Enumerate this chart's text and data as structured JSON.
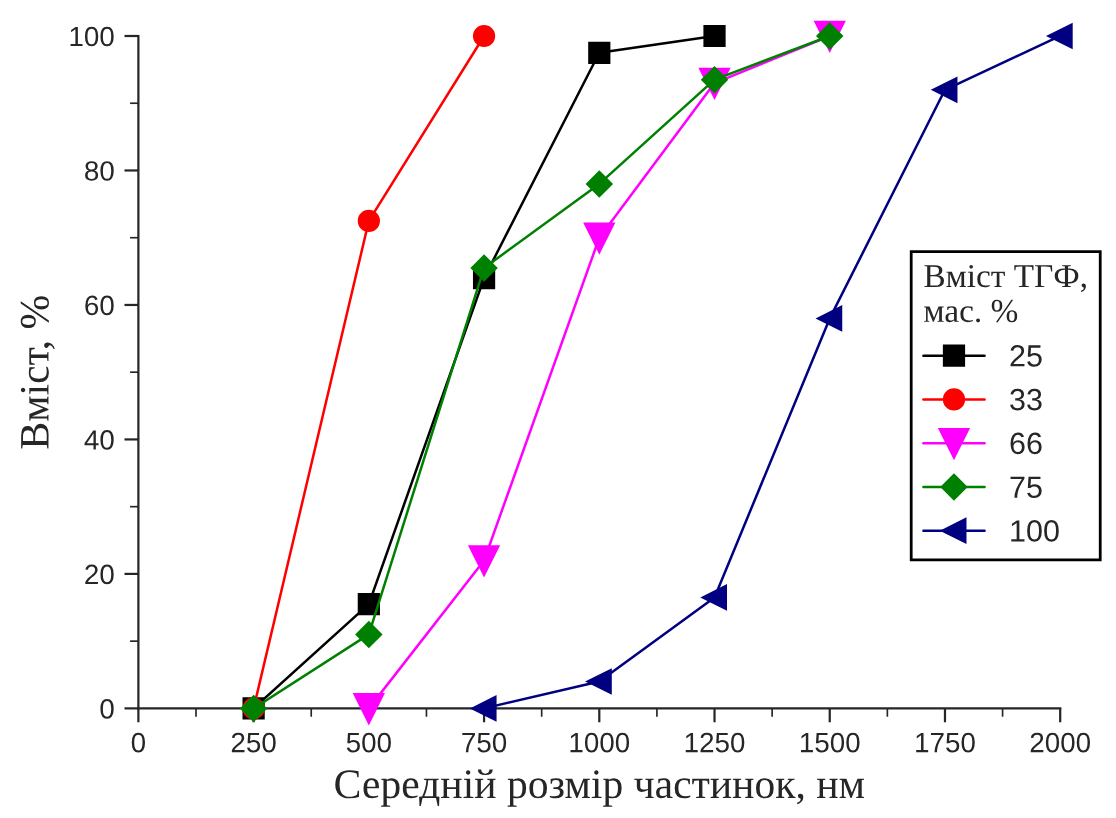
{
  "chart_data": {
    "type": "line",
    "xlabel": "Середній розмір частинок, нм",
    "ylabel": "Вміст, %",
    "legend_title": "Вміст ТГФ,\nмас. %",
    "xlim": [
      0,
      2000
    ],
    "xticks": [
      0,
      250,
      500,
      750,
      1000,
      1250,
      1500,
      1750,
      2000
    ],
    "ylim": [
      0,
      100
    ],
    "yticks": [
      0,
      20,
      40,
      60,
      80,
      100
    ],
    "grid": false,
    "legend": "right",
    "line_style": "solid",
    "series": [
      {
        "name": "25",
        "color": "#000000",
        "marker": "square",
        "x": [
          250,
          500,
          750,
          1000,
          1250
        ],
        "values": [
          0,
          15.5,
          64,
          97.5,
          100
        ]
      },
      {
        "name": "33",
        "color": "#ff0000",
        "marker": "circle",
        "x": [
          250,
          500,
          750
        ],
        "values": [
          0,
          72.5,
          100
        ]
      },
      {
        "name": "66",
        "color": "#ff00ff",
        "marker": "triangle_down",
        "x": [
          500,
          750,
          1000,
          1250,
          1500
        ],
        "values": [
          0,
          22,
          70,
          93,
          100
        ]
      },
      {
        "name": "75",
        "color": "#008000",
        "marker": "diamond",
        "x": [
          250,
          500,
          750,
          1000,
          1250,
          1500
        ],
        "values": [
          0,
          11,
          65.5,
          78,
          93.5,
          100
        ]
      },
      {
        "name": "100",
        "color": "#000080",
        "marker": "triangle_left",
        "x": [
          750,
          1000,
          1250,
          1500,
          1750,
          2000
        ],
        "values": [
          0,
          4,
          16.5,
          58,
          92,
          100
        ]
      }
    ]
  }
}
